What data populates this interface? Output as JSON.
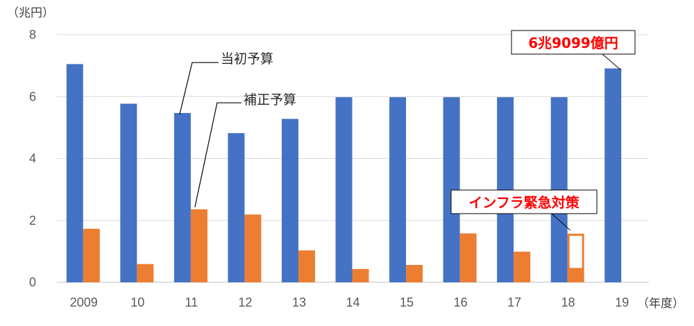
{
  "chart_data": {
    "type": "bar",
    "y_unit": "（兆円）",
    "x_unit": "（年度）",
    "categories": [
      "2009",
      "10",
      "11",
      "12",
      "13",
      "14",
      "15",
      "16",
      "17",
      "18",
      "19"
    ],
    "ylim": [
      0,
      8
    ],
    "yticks": [
      0,
      2,
      4,
      6,
      8
    ],
    "grid": true,
    "series": [
      {
        "name": "当初予算",
        "color": "#4472c4",
        "values": [
          7.05,
          5.77,
          5.47,
          4.82,
          5.28,
          5.98,
          5.98,
          5.98,
          5.98,
          5.98,
          6.91
        ]
      },
      {
        "name": "補正予算",
        "color": "#ed7d31",
        "values": [
          1.73,
          0.59,
          2.36,
          2.19,
          1.03,
          0.43,
          0.56,
          1.58,
          0.99,
          0.43,
          null
        ]
      }
    ],
    "infrastructure_emergency_measure": {
      "category": "18",
      "value_total": 1.57,
      "label": "インフラ緊急対策"
    },
    "annotations": [
      {
        "text": "6兆9099億円",
        "points_to": "19"
      }
    ]
  }
}
